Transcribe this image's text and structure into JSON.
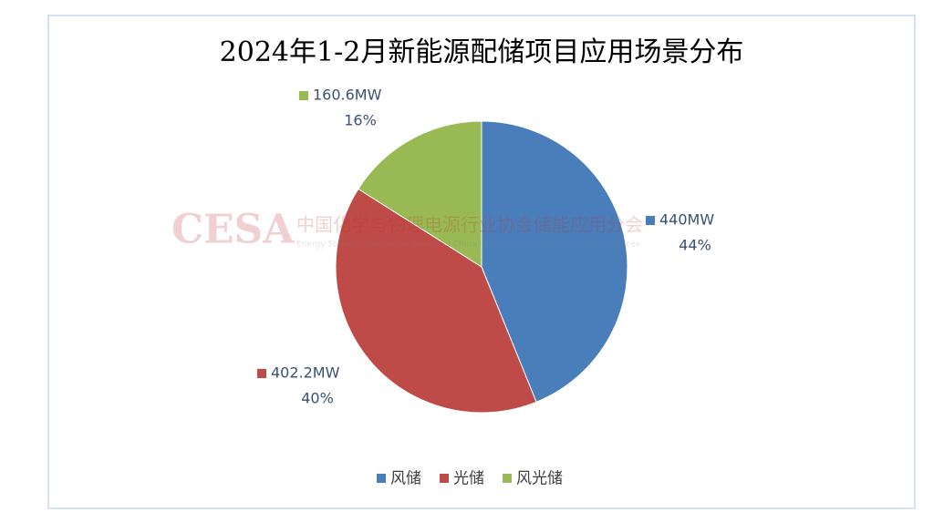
{
  "chart_data": {
    "type": "pie",
    "title": "2024年1-2月新能源配储项目应用场景分布",
    "categories": [
      "风储",
      "光储",
      "风光储"
    ],
    "values": [
      440,
      402.2,
      160.6
    ],
    "value_labels": [
      "440MW",
      "402.2MW",
      "160.6MW"
    ],
    "percent_labels": [
      "44%",
      "40%",
      "16%"
    ],
    "colors": [
      "#4a7ebb",
      "#be4b48",
      "#98b954"
    ],
    "legend": "bottom"
  },
  "watermark": {
    "logo": "CESA",
    "name": "中国化学与物理电源行业协会储能应用分会",
    "subtitle": "Energy Storage Application Branch of China Industrial Association of Power Sources"
  }
}
